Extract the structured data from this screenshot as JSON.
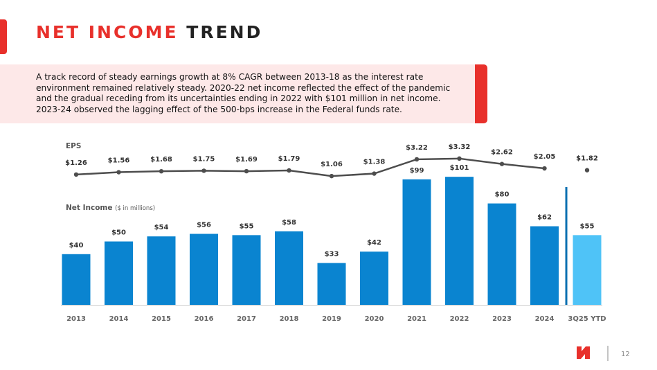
{
  "header": {
    "title_highlight": "NET INCOME",
    "title_rest": "TREND"
  },
  "callout": "A track record of steady earnings growth at 8% CAGR between 2013-18 as the interest rate environment remained relatively steady. 2020-22 net income reflected the effect of the pandemic and the gradual receding from its uncertainties ending in 2022 with $101 million in net income. 2023-24 observed the lagging effect of the 500-bps increase in the Federal funds rate.",
  "chart_data": {
    "type": "bar",
    "categories": [
      "2013",
      "2014",
      "2015",
      "2016",
      "2017",
      "2018",
      "2019",
      "2020",
      "2021",
      "2022",
      "2023",
      "2024"
    ],
    "series": [
      {
        "name": "EPS",
        "type": "line",
        "color": "#4d4d4d",
        "values": [
          1.26,
          1.56,
          1.68,
          1.75,
          1.69,
          1.79,
          1.06,
          1.38,
          3.22,
          3.32,
          2.62,
          2.05
        ],
        "value_labels": [
          "$1.26",
          "$1.56",
          "$1.68",
          "$1.75",
          "$1.69",
          "$1.79",
          "$1.06",
          "$1.38",
          "$3.22",
          "$3.32",
          "$2.62",
          "$2.05"
        ]
      },
      {
        "name": "Net Income",
        "unit_note": "($ in millions)",
        "type": "bar",
        "color": "#0a84d0",
        "values": [
          40,
          50,
          54,
          56,
          55,
          58,
          33,
          42,
          99,
          101,
          80,
          62
        ],
        "value_labels": [
          "$40",
          "$50",
          "$54",
          "$56",
          "$55",
          "$58",
          "$33",
          "$42",
          "$99",
          "$101",
          "$80",
          "$62"
        ]
      }
    ],
    "ytd": {
      "category": "3Q25 YTD",
      "color": "#4fc3f7",
      "eps": 1.82,
      "eps_label": "$1.82",
      "net_income": 55,
      "net_income_label": "$55"
    }
  },
  "page_number": "12"
}
